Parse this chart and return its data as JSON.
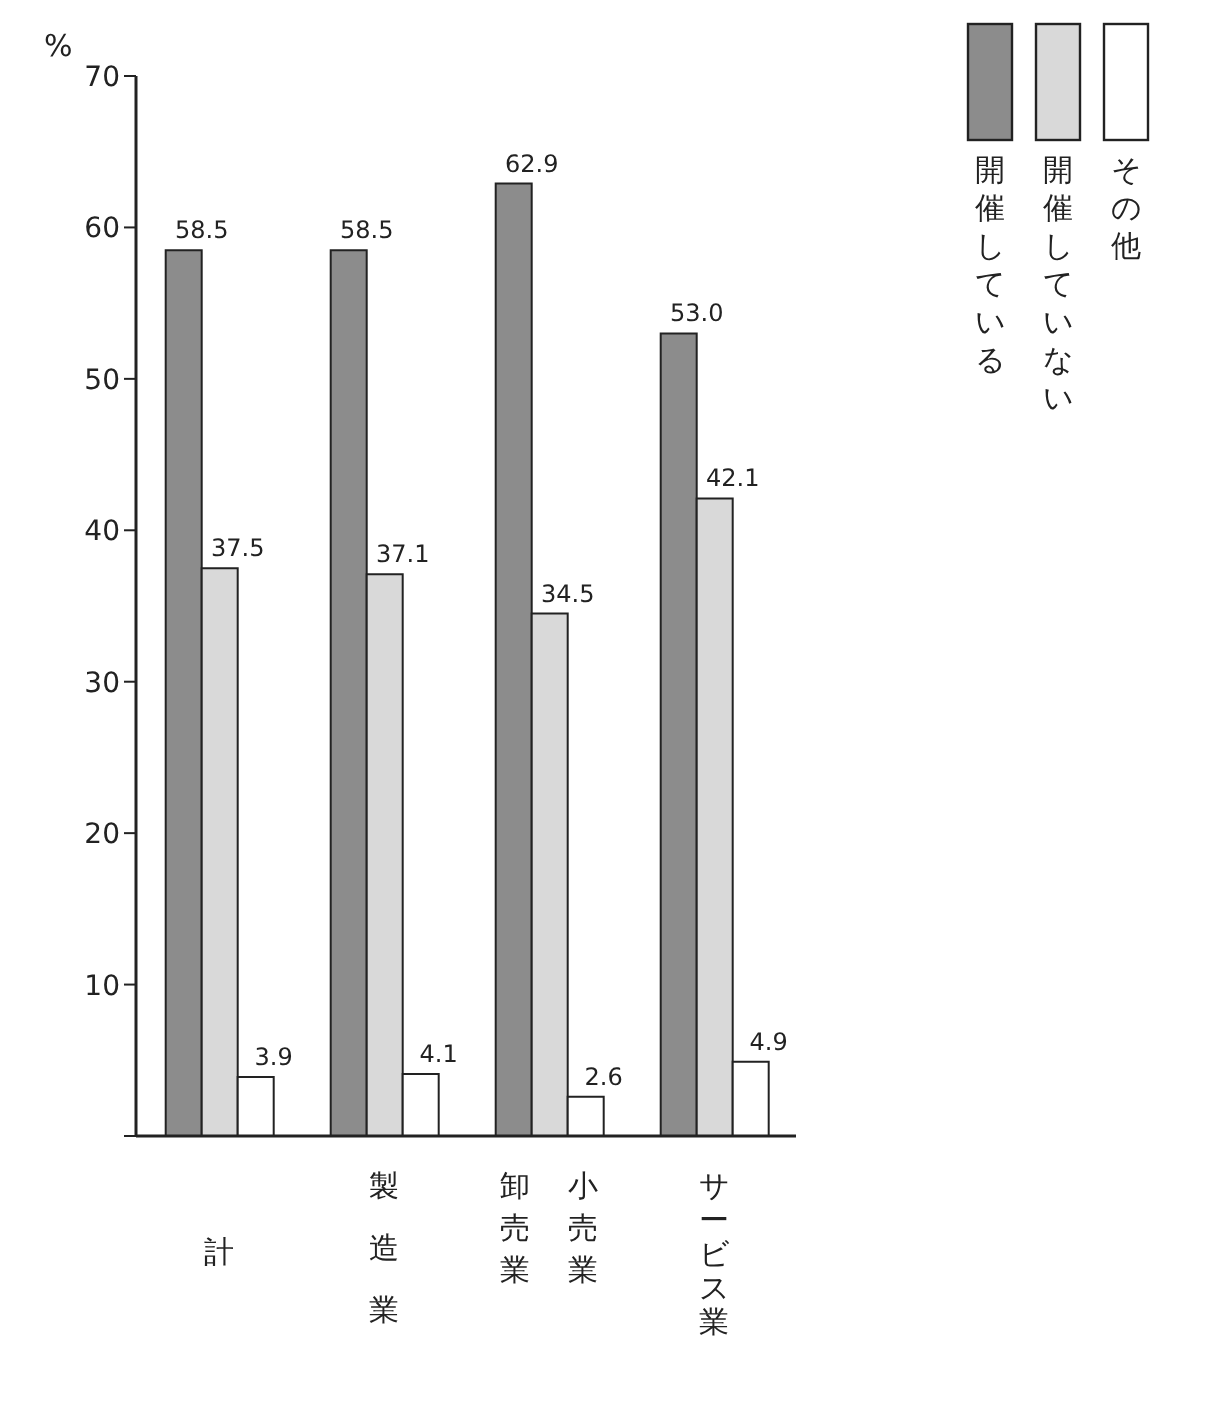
{
  "chart_data": {
    "type": "bar",
    "ylabel": "%",
    "categories": [
      "計",
      "製造業",
      "卸売業小売業",
      "サービス業"
    ],
    "series": [
      {
        "name": "開催している",
        "color": "#8c8c8c",
        "values": [
          58.5,
          58.5,
          62.9,
          53.0
        ]
      },
      {
        "name": "開催していない",
        "color": "#d9d9d9",
        "values": [
          37.5,
          37.1,
          34.5,
          42.1
        ]
      },
      {
        "name": "その他",
        "color": "#ffffff",
        "values": [
          3.9,
          4.1,
          2.6,
          4.9
        ]
      }
    ],
    "value_labels": [
      [
        "58.5",
        "58.5",
        "62.9",
        "53.0"
      ],
      [
        "37.5",
        "37.1",
        "34.5",
        "42.1"
      ],
      [
        "3.9",
        "4.1",
        "2.6",
        "4.9"
      ]
    ],
    "ylim": [
      0,
      70
    ],
    "yticks": [
      {
        "value": 0,
        "label": null
      },
      10,
      20,
      30,
      40,
      50,
      60,
      70
    ],
    "legend": "top right"
  }
}
